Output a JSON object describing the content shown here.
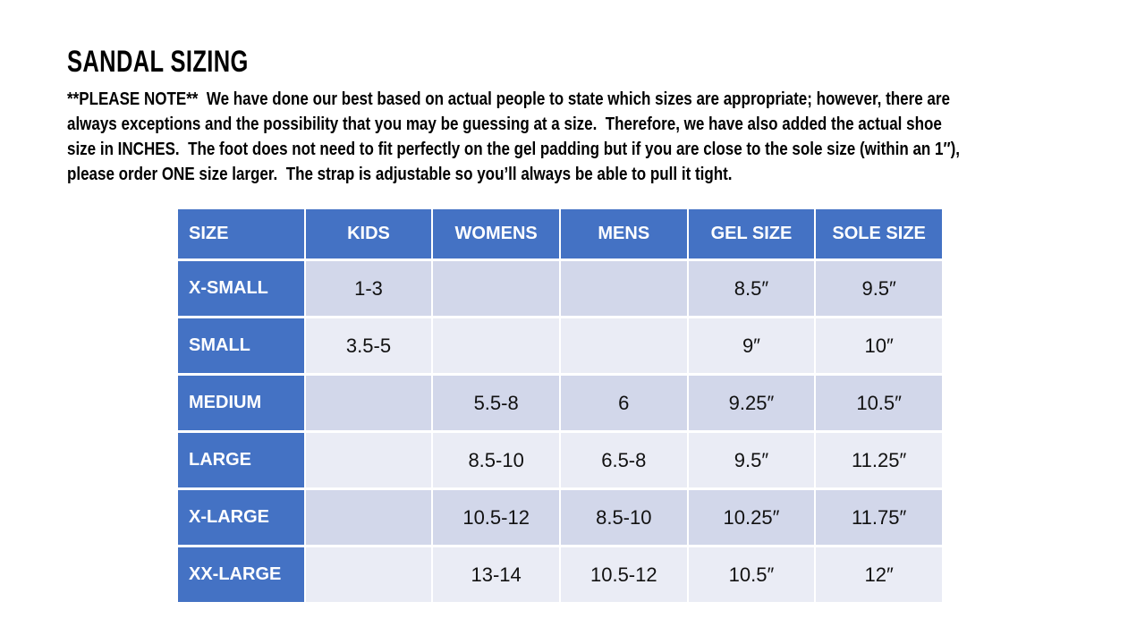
{
  "title": "SANDAL SIZING",
  "note": {
    "lines": [
      "**PLEASE NOTE**  We have done our best based on actual people to state which sizes are appropriate; however, there are",
      "always exceptions and the possibility that you may be guessing at a size.  Therefore, we have also added the actual shoe",
      "size in INCHES.  The foot does not need to fit perfectly on the gel padding but if you are close to the sole size (within an 1″),",
      "please order ONE size larger.  The strap is adjustable so you’ll always be able to pull it tight."
    ]
  },
  "table": {
    "columns": [
      "SIZE",
      "KIDS",
      "WOMENS",
      "MENS",
      "GEL SIZE",
      "SOLE SIZE"
    ],
    "rows": [
      [
        "X-SMALL",
        "1-3",
        "",
        "",
        "8.5″",
        "9.5″"
      ],
      [
        "SMALL",
        "3.5-5",
        "",
        "",
        "9″",
        "10″"
      ],
      [
        "MEDIUM",
        "",
        "5.5-8",
        "6",
        "9.25″",
        "10.5″"
      ],
      [
        "LARGE",
        "",
        "8.5-10",
        "6.5-8",
        "9.5″",
        "11.25″"
      ],
      [
        "X-LARGE",
        "",
        "10.5-12",
        "8.5-10",
        "10.25″",
        "11.75″"
      ],
      [
        "XX-LARGE",
        "",
        "13-14",
        "10.5-12",
        "10.5″",
        "12″"
      ]
    ],
    "colors": {
      "header_bg": "#4472C4",
      "header_text": "#FFFFFF",
      "band_dark": "#D2D7EA",
      "band_light": "#EAECF5",
      "data_text": "#111111",
      "divider": "#FFFFFF"
    }
  }
}
